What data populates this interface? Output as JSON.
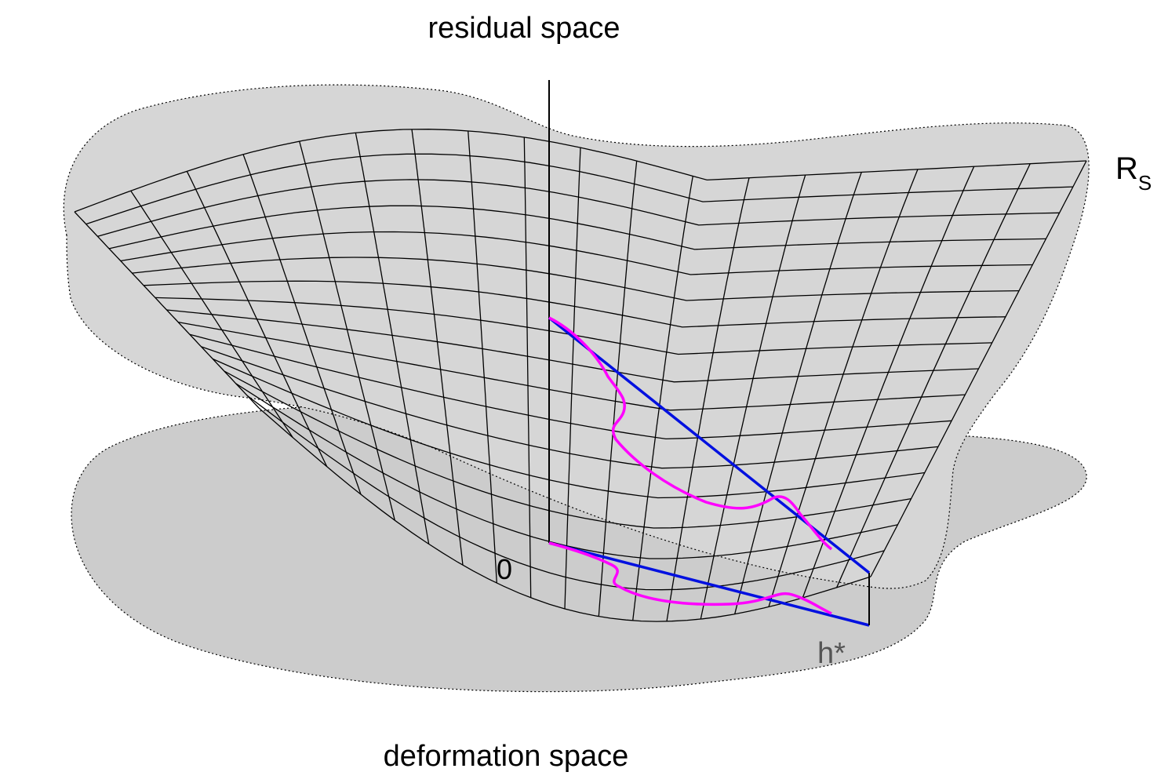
{
  "labels": {
    "residual_space": "residual space",
    "deformation_space": "deformation space",
    "origin": "0",
    "optimum": "h*",
    "surface_main": "R",
    "surface_sub": "S"
  },
  "colors": {
    "background": "#ffffff",
    "surface_fill": "#d6d6d6",
    "plane_fill": "#cccccc",
    "grid": "#000000",
    "axis": "#000000",
    "path_direct": "#0010e0",
    "path_iterative": "#ff00ff",
    "optimum_label": "#555555"
  }
}
